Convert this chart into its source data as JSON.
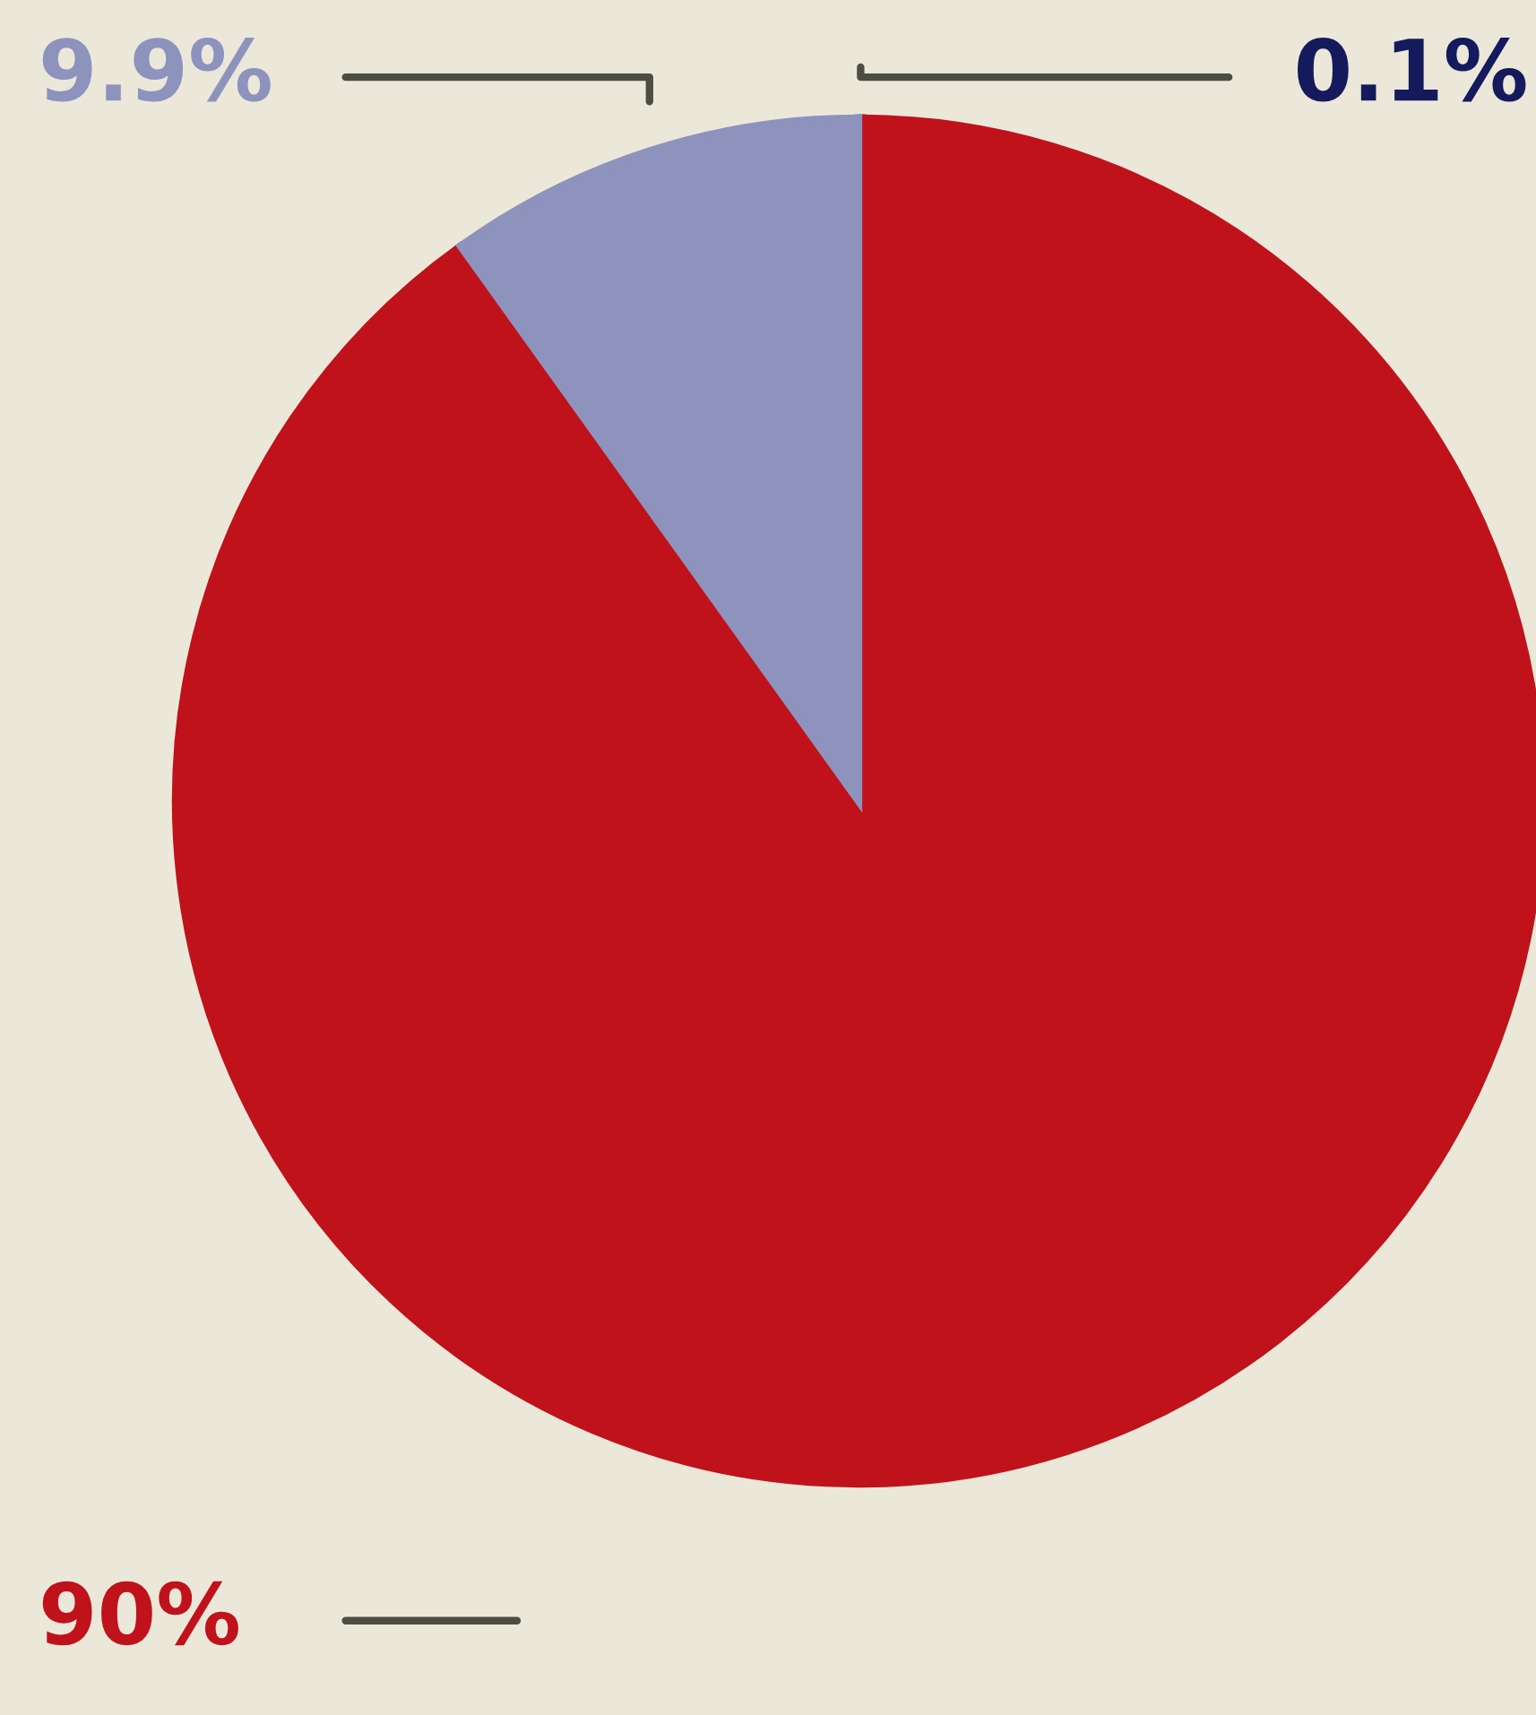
{
  "chart_data": {
    "type": "pie",
    "categories": [
      null,
      null,
      null
    ],
    "values": [
      0.1,
      90,
      9.9
    ],
    "colors": [
      "#141a5c",
      "#c0121a",
      "#8d93bd"
    ],
    "value_labels": [
      "0.1%",
      "90%",
      "9.9%"
    ]
  }
}
